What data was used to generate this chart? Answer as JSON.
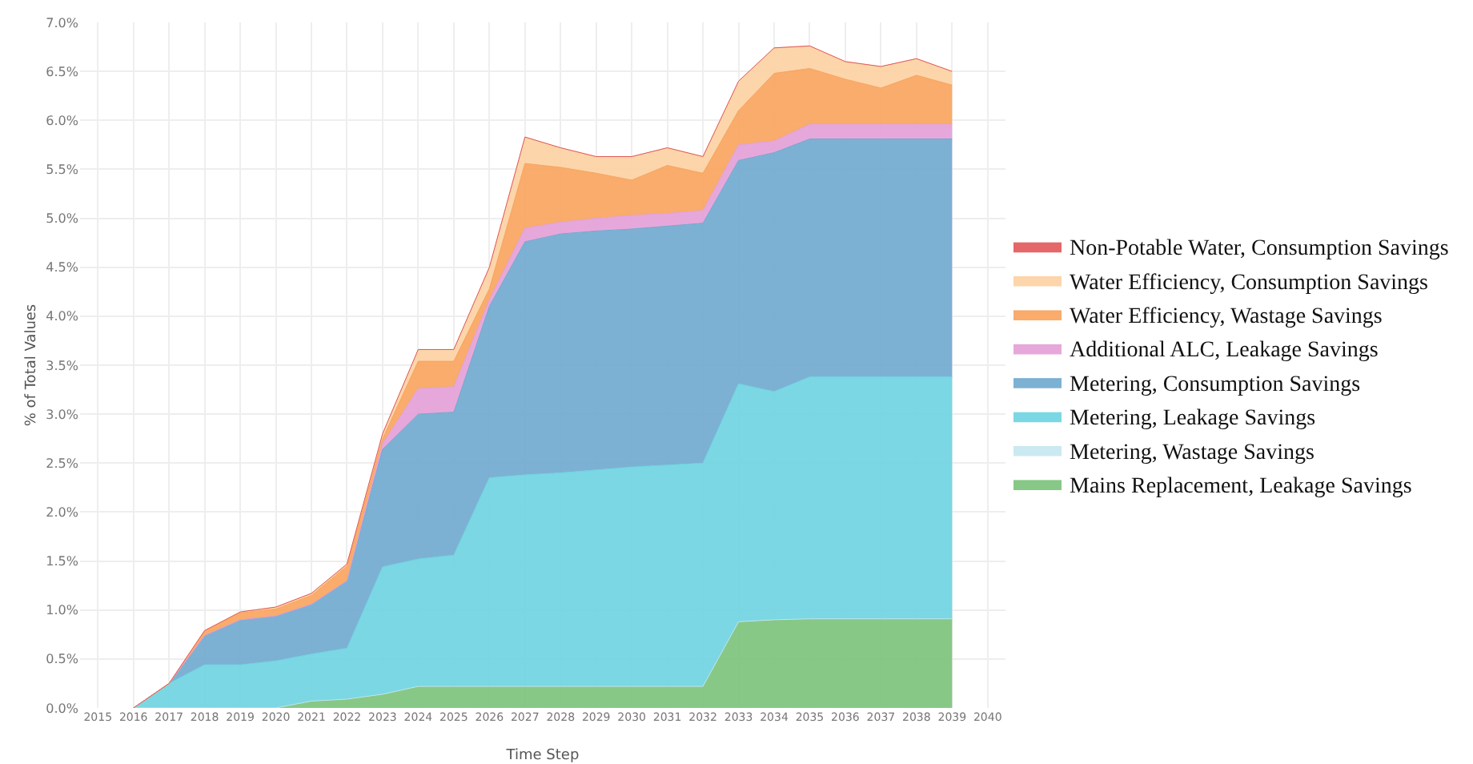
{
  "chart_data": {
    "type": "area",
    "stacked": true,
    "xlabel": "Time Step",
    "ylabel": "% of Total Values",
    "x": [
      2016,
      2017,
      2018,
      2019,
      2020,
      2021,
      2022,
      2023,
      2024,
      2025,
      2026,
      2027,
      2028,
      2029,
      2030,
      2031,
      2032,
      2033,
      2034,
      2035,
      2036,
      2037,
      2038,
      2039
    ],
    "series": [
      {
        "name": "Mains Replacement, Leakage Savings",
        "color": "#7ac27a",
        "values": [
          0,
          0,
          0,
          0,
          0,
          0.07,
          0.09,
          0.14,
          0.22,
          0.22,
          0.22,
          0.22,
          0.22,
          0.22,
          0.22,
          0.22,
          0.22,
          0.88,
          0.9,
          0.91,
          0.91,
          0.91,
          0.91,
          0.91
        ]
      },
      {
        "name": "Metering, Wastage Savings",
        "color": "#c5e7ee",
        "values": [
          null,
          null,
          null,
          null,
          null,
          null,
          null,
          null,
          null,
          null,
          null,
          null,
          null,
          null,
          null,
          null,
          null,
          null,
          null,
          null,
          null,
          null,
          null,
          null
        ]
      },
      {
        "name": "Metering, Leakage Savings",
        "color": "#6dd3e0",
        "values": [
          0,
          0.25,
          0.44,
          0.44,
          0.48,
          0.48,
          0.52,
          1.3,
          1.3,
          1.34,
          2.13,
          2.16,
          2.18,
          2.21,
          2.24,
          2.26,
          2.28,
          2.43,
          2.33,
          2.47,
          2.47,
          2.47,
          2.47,
          2.47
        ]
      },
      {
        "name": "Metering, Consumption Savings",
        "color": "#6fa8cf",
        "values": [
          0,
          0,
          0.3,
          0.46,
          0.46,
          0.51,
          0.69,
          1.2,
          1.48,
          1.46,
          1.75,
          2.38,
          2.44,
          2.44,
          2.43,
          2.44,
          2.45,
          2.28,
          2.44,
          2.43,
          2.43,
          2.43,
          2.43,
          2.43
        ]
      },
      {
        "name": "Additional ALC, Leakage Savings",
        "color": "#e39fd6",
        "values": [
          0,
          0,
          0,
          0,
          0,
          0,
          0,
          0.06,
          0.26,
          0.26,
          0.07,
          0.14,
          0.12,
          0.13,
          0.14,
          0.13,
          0.13,
          0.16,
          0.12,
          0.15,
          0.15,
          0.15,
          0.15,
          0.15
        ]
      },
      {
        "name": "Water Efficiency, Wastage Savings",
        "color": "#f8a35b",
        "values": [
          0,
          0,
          0.05,
          0.07,
          0.07,
          0.09,
          0.15,
          0.05,
          0.28,
          0.26,
          0.11,
          0.66,
          0.56,
          0.46,
          0.36,
          0.49,
          0.38,
          0.35,
          0.69,
          0.57,
          0.46,
          0.37,
          0.5,
          0.4
        ]
      },
      {
        "name": "Water Efficiency, Consumption Savings",
        "color": "#fdd0a2",
        "values": [
          0,
          0,
          0,
          0.01,
          0.02,
          0.02,
          0.02,
          0.05,
          0.12,
          0.12,
          0.22,
          0.27,
          0.2,
          0.17,
          0.24,
          0.18,
          0.17,
          0.3,
          0.26,
          0.23,
          0.18,
          0.22,
          0.17,
          0.14
        ]
      },
      {
        "name": "Non-Potable Water, Consumption Savings",
        "color": "#e15759",
        "values": [
          null,
          null,
          null,
          null,
          null,
          null,
          null,
          null,
          null,
          null,
          null,
          null,
          null,
          null,
          null,
          null,
          null,
          null,
          null,
          null,
          null,
          null,
          null,
          null
        ]
      }
    ],
    "xlim": [
      2014.5,
      2040.5
    ],
    "xticks": [
      2015,
      2016,
      2017,
      2018,
      2019,
      2020,
      2021,
      2022,
      2023,
      2024,
      2025,
      2026,
      2027,
      2028,
      2029,
      2030,
      2031,
      2032,
      2033,
      2034,
      2035,
      2036,
      2037,
      2038,
      2039,
      2040
    ],
    "ylim": [
      0,
      7
    ],
    "yticks": [
      {
        "value": 0,
        "label": "0.0%"
      },
      {
        "value": 0.5,
        "label": "0.5%"
      },
      {
        "value": 1,
        "label": "1.0%"
      },
      {
        "value": 1.5,
        "label": "1.5%"
      },
      {
        "value": 2,
        "label": "2.0%"
      },
      {
        "value": 2.5,
        "label": "2.5%"
      },
      {
        "value": 3,
        "label": "3.0%"
      },
      {
        "value": 3.5,
        "label": "3.5%"
      },
      {
        "value": 4,
        "label": "4.0%"
      },
      {
        "value": 4.5,
        "label": "4.5%"
      },
      {
        "value": 5,
        "label": "5.0%"
      },
      {
        "value": 5.5,
        "label": "5.5%"
      },
      {
        "value": 6,
        "label": "6.0%"
      },
      {
        "value": 6.5,
        "label": "6.5%"
      },
      {
        "value": 7,
        "label": "7.0%"
      }
    ],
    "grid": true,
    "legend": "right"
  }
}
